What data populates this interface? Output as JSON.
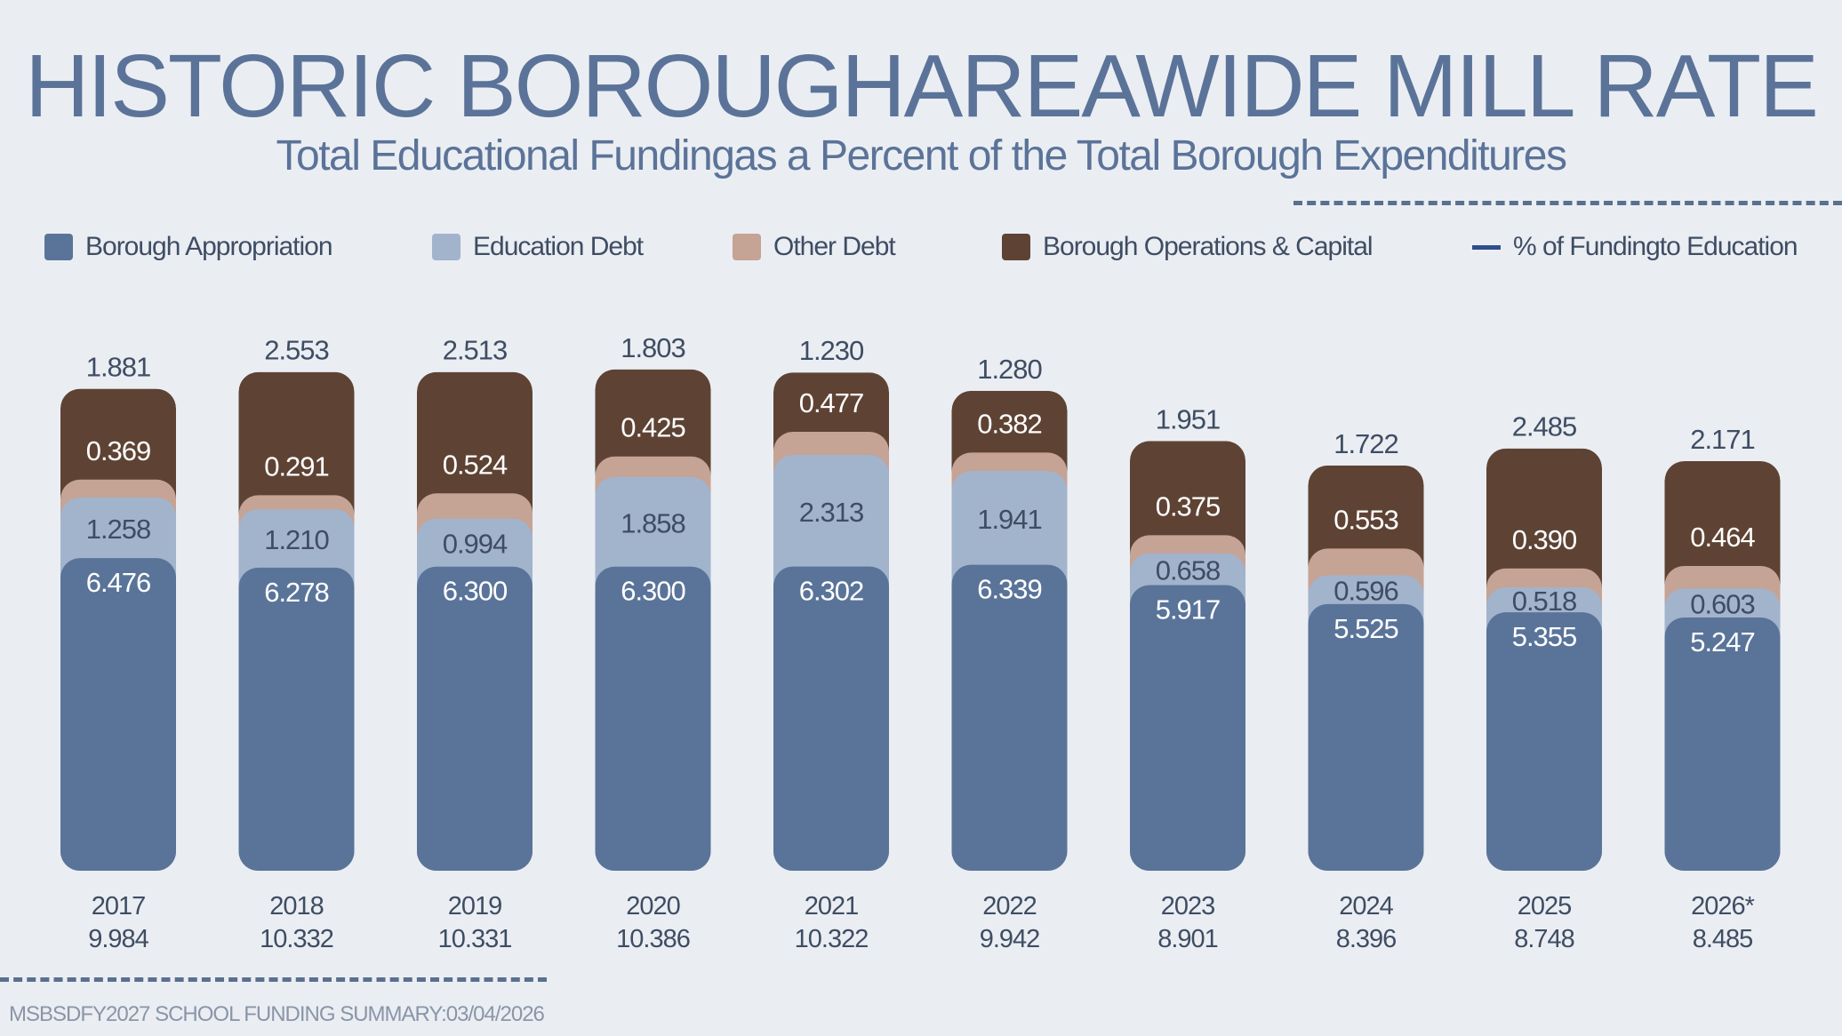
{
  "header": {
    "title": "HISTORIC BOROUGHAREAWIDE MILL  RATE",
    "subtitle": "Total  Educational Fundingas a Percent of  the  Total  Borough  Expenditures"
  },
  "footer": {
    "text": "MSBSDFY2027 SCHOOL  FUNDING  SUMMARY:03/04/2026"
  },
  "legend": [
    {
      "label": "Borough Appropriation",
      "color": "#5a7499",
      "kind": "swatch"
    },
    {
      "label": "Education Debt",
      "color": "#a2b3cc",
      "kind": "swatch"
    },
    {
      "label": "Other Debt",
      "color": "#c5a395",
      "kind": "swatch"
    },
    {
      "label": "Borough Operations  & Capital",
      "color": "#5e4334",
      "kind": "swatch"
    },
    {
      "label": "% of  Fundingto  Education",
      "color": "#2f4e8c",
      "kind": "line"
    }
  ],
  "chart_data": {
    "type": "bar",
    "stacked": true,
    "categories": [
      "2017",
      "2018",
      "2019",
      "2020",
      "2021",
      "2022",
      "2023",
      "2024",
      "2025",
      "2026*"
    ],
    "totals": [
      "9.984",
      "10.332",
      "10.331",
      "10.386",
      "10.322",
      "9.942",
      "8.901",
      "8.396",
      "8.748",
      "8.485"
    ],
    "series": [
      {
        "name": "Borough Appropriation",
        "color": "#5a7499",
        "label_color": "#ffffff",
        "values": [
          6.476,
          6.278,
          6.3,
          6.3,
          6.302,
          6.339,
          5.917,
          5.525,
          5.355,
          5.247
        ],
        "labels": [
          "6.476",
          "6.278",
          "6.300",
          "6.300",
          "6.302",
          "6.339",
          "5.917",
          "5.525",
          "5.355",
          "5.247"
        ]
      },
      {
        "name": "Education Debt",
        "color": "#a2b3cc",
        "label_color": "#3f4d63",
        "values": [
          1.258,
          1.21,
          0.994,
          1.858,
          2.313,
          1.941,
          0.658,
          0.596,
          0.518,
          0.603
        ],
        "labels": [
          "1.258",
          "1.210",
          "0.994",
          "1.858",
          "2.313",
          "1.941",
          "0.658",
          "0.596",
          "0.518",
          "0.603"
        ]
      },
      {
        "name": "Other Debt",
        "color": "#c5a395",
        "label_color": "#ffffff",
        "values": [
          0.369,
          0.291,
          0.524,
          0.425,
          0.477,
          0.382,
          0.375,
          0.553,
          0.39,
          0.464
        ],
        "labels": [
          "0.369",
          "0.291",
          "0.524",
          "0.425",
          "0.477",
          "0.382",
          "0.375",
          "0.553",
          "0.390",
          "0.464"
        ]
      },
      {
        "name": "Borough Operations  & Capital",
        "color": "#5e4334",
        "label_color": "#3f4d63",
        "values": [
          1.881,
          2.553,
          2.513,
          1.803,
          1.23,
          1.28,
          1.951,
          1.722,
          2.485,
          2.171
        ],
        "labels": [
          "1.881",
          "2.553",
          "2.513",
          "1.803",
          "1.230",
          "1.280",
          "1.951",
          "1.722",
          "2.485",
          "2.171"
        ]
      }
    ],
    "ylim": [
      0,
      10.4
    ],
    "grid": false,
    "legend_position": "top"
  }
}
